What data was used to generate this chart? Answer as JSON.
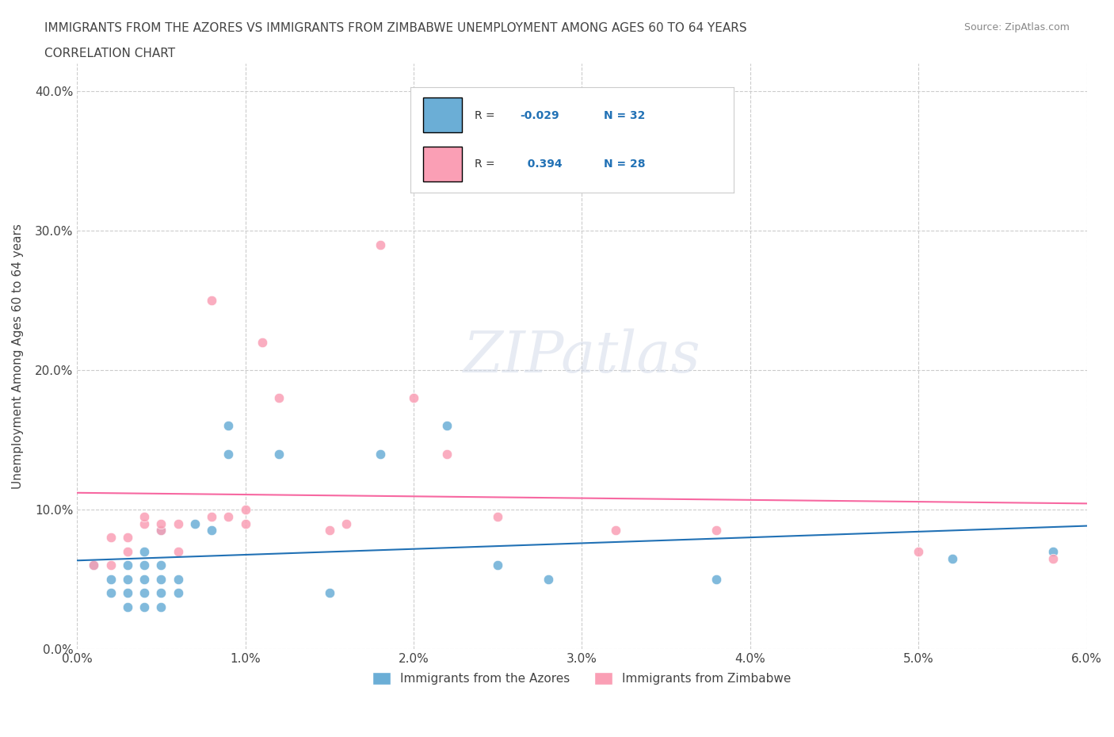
{
  "title_line1": "IMMIGRANTS FROM THE AZORES VS IMMIGRANTS FROM ZIMBABWE UNEMPLOYMENT AMONG AGES 60 TO 64 YEARS",
  "title_line2": "CORRELATION CHART",
  "source_text": "Source: ZipAtlas.com",
  "xlabel": "",
  "ylabel": "Unemployment Among Ages 60 to 64 years",
  "xlim": [
    0.0,
    0.06
  ],
  "ylim": [
    0.0,
    0.42
  ],
  "xticks": [
    0.0,
    0.01,
    0.02,
    0.03,
    0.04,
    0.05,
    0.06
  ],
  "xticklabels": [
    "0.0%",
    "1.0%",
    "2.0%",
    "3.0%",
    "4.0%",
    "5.0%",
    "6.0%"
  ],
  "yticks": [
    0.0,
    0.1,
    0.2,
    0.3,
    0.4
  ],
  "yticklabels": [
    "0.0%",
    "10.0%",
    "20.0%",
    "30.0%",
    "40.0%"
  ],
  "watermark": "ZIPatlas",
  "blue_color": "#6baed6",
  "pink_color": "#fa9fb5",
  "blue_line_color": "#2171b5",
  "pink_line_color": "#f768a1",
  "R_blue": -0.029,
  "N_blue": 32,
  "R_pink": 0.394,
  "N_pink": 28,
  "blue_scatter_x": [
    0.001,
    0.002,
    0.002,
    0.003,
    0.003,
    0.003,
    0.003,
    0.004,
    0.004,
    0.004,
    0.004,
    0.004,
    0.005,
    0.005,
    0.005,
    0.005,
    0.005,
    0.006,
    0.006,
    0.007,
    0.008,
    0.009,
    0.009,
    0.012,
    0.015,
    0.018,
    0.022,
    0.025,
    0.028,
    0.038,
    0.052,
    0.058
  ],
  "blue_scatter_y": [
    0.06,
    0.04,
    0.05,
    0.03,
    0.04,
    0.05,
    0.06,
    0.03,
    0.04,
    0.05,
    0.06,
    0.07,
    0.03,
    0.04,
    0.05,
    0.06,
    0.085,
    0.04,
    0.05,
    0.09,
    0.085,
    0.14,
    0.16,
    0.14,
    0.04,
    0.14,
    0.16,
    0.06,
    0.05,
    0.05,
    0.065,
    0.07
  ],
  "pink_scatter_x": [
    0.001,
    0.002,
    0.002,
    0.003,
    0.003,
    0.004,
    0.004,
    0.005,
    0.005,
    0.006,
    0.006,
    0.008,
    0.008,
    0.009,
    0.01,
    0.01,
    0.011,
    0.012,
    0.015,
    0.016,
    0.018,
    0.02,
    0.022,
    0.025,
    0.032,
    0.038,
    0.05,
    0.058
  ],
  "pink_scatter_y": [
    0.06,
    0.06,
    0.08,
    0.07,
    0.08,
    0.09,
    0.095,
    0.085,
    0.09,
    0.07,
    0.09,
    0.095,
    0.25,
    0.095,
    0.09,
    0.1,
    0.22,
    0.18,
    0.085,
    0.09,
    0.29,
    0.18,
    0.14,
    0.095,
    0.085,
    0.085,
    0.07,
    0.065
  ],
  "background_color": "#ffffff",
  "grid_color": "#cccccc"
}
